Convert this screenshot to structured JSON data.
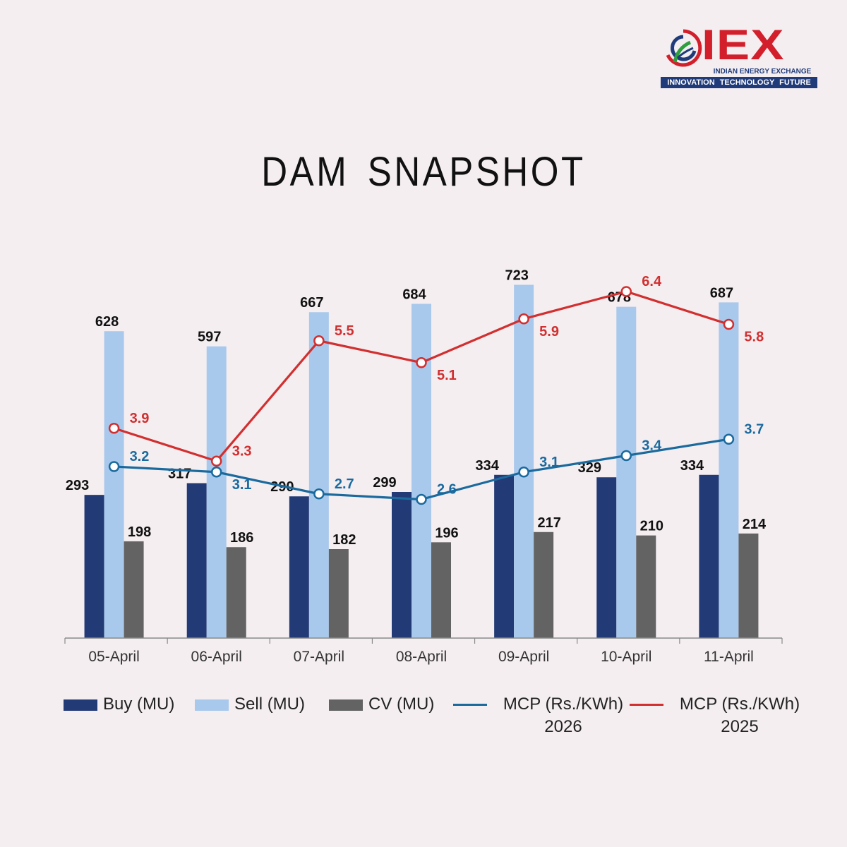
{
  "logo": {
    "word": "IEX",
    "subtitle": "INDIAN ENERGY EXCHANGE",
    "tagline": "INNOVATION TECHNOLOGY FUTURE"
  },
  "title": "DAM SNAPSHOT",
  "colors": {
    "buy": "#223a75",
    "sell": "#a9c9ec",
    "cv": "#636363",
    "mcp2026": "#1a6a9e",
    "mcp2025": "#d22f2f",
    "background": "#f4eef1"
  },
  "legend": [
    {
      "key": "buy",
      "label": "Buy (MU)",
      "kind": "bar"
    },
    {
      "key": "sell",
      "label": "Sell (MU)",
      "kind": "bar"
    },
    {
      "key": "cv",
      "label": "CV (MU)",
      "kind": "bar"
    },
    {
      "key": "mcp2026",
      "label_line1": "MCP (Rs./KWh)",
      "label_line2": "2026",
      "kind": "line"
    },
    {
      "key": "mcp2025",
      "label_line1": "MCP (Rs./KWh)",
      "label_line2": "2025",
      "kind": "line"
    }
  ],
  "chart_data": {
    "type": "bar",
    "title": "DAM SNAPSHOT",
    "categories": [
      "05-April",
      "06-April",
      "07-April",
      "08-April",
      "09-April",
      "10-April",
      "11-April"
    ],
    "bar_axis_range": [
      0,
      800
    ],
    "line_axis_range": [
      0,
      8
    ],
    "grid": false,
    "legend_position": "bottom",
    "series": [
      {
        "key": "buy",
        "name": "Buy (MU)",
        "type": "bar",
        "values": [
          293,
          317,
          290,
          299,
          334,
          329,
          334
        ]
      },
      {
        "key": "sell",
        "name": "Sell (MU)",
        "type": "bar",
        "values": [
          628,
          597,
          667,
          684,
          723,
          678,
          687
        ]
      },
      {
        "key": "cv",
        "name": "CV (MU)",
        "type": "bar",
        "values": [
          198,
          186,
          182,
          196,
          217,
          210,
          214
        ]
      },
      {
        "key": "mcp2026",
        "name": "MCP (Rs./KWh) 2026",
        "type": "line",
        "values": [
          3.2,
          3.1,
          2.7,
          2.6,
          3.1,
          3.4,
          3.7
        ]
      },
      {
        "key": "mcp2025",
        "name": "MCP (Rs./KWh) 2025",
        "type": "line",
        "values": [
          3.9,
          3.3,
          5.5,
          5.1,
          5.9,
          6.4,
          5.8
        ]
      }
    ]
  }
}
